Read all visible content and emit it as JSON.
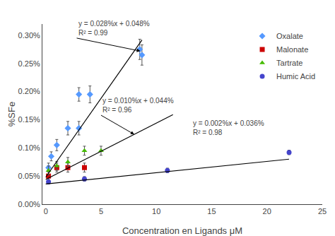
{
  "chart_data": {
    "type": "scatter",
    "xlabel": "Concentration en Ligands μM",
    "ylabel": "%SFe",
    "xlim": [
      -0.3,
      25
    ],
    "ylim": [
      0,
      0.0032
    ],
    "xticks": [
      0,
      5,
      10,
      15,
      20,
      25
    ],
    "yticks": [
      {
        "value": 0.0,
        "label": "0.00%"
      },
      {
        "value": 0.0005,
        "label": "0.05%"
      },
      {
        "value": 0.001,
        "label": "0.10%"
      },
      {
        "value": 0.0015,
        "label": "0.15%"
      },
      {
        "value": 0.002,
        "label": "0.20%"
      },
      {
        "value": 0.0025,
        "label": "0.25%"
      },
      {
        "value": 0.003,
        "label": "0.30%"
      }
    ],
    "grid": false,
    "legend": "upper right",
    "series": [
      {
        "name": "Oxalate",
        "type": "scatter",
        "color": "#5599ff",
        "marker": "diamond",
        "x": [
          0.25,
          0.5,
          1.0,
          2.0,
          3.0,
          3.0,
          4.0,
          8.5,
          8.7
        ],
        "values": [
          0.00065,
          0.00085,
          0.00105,
          0.00135,
          0.00135,
          0.00195,
          0.00195,
          0.00275,
          0.00265
        ],
        "yerr": [
          8e-05,
          8e-05,
          0.0001,
          0.00012,
          0.00012,
          0.00012,
          0.00015,
          0.00018,
          0.00018
        ]
      },
      {
        "name": "Malonate",
        "type": "scatter",
        "color": "#cc0000",
        "marker": "square",
        "x": [
          0.25,
          1.0,
          2.0,
          3.5
        ],
        "values": [
          0.0005,
          0.00065,
          0.00065,
          0.00065
        ],
        "yerr": [
          8e-05,
          8e-05,
          8e-05,
          8e-05
        ]
      },
      {
        "name": "Tartrate",
        "type": "scatter",
        "color": "#44bb00",
        "marker": "triangle-up",
        "x": [
          0.25,
          1.0,
          2.0,
          3.5,
          5.0
        ],
        "values": [
          0.0006,
          0.00068,
          0.00075,
          0.00095,
          0.00095
        ],
        "yerr": [
          8e-05,
          8e-05,
          8e-05,
          8e-05,
          8e-05
        ]
      },
      {
        "name": "Humic Acid",
        "type": "scatter",
        "color": "#4444cc",
        "marker": "circle",
        "x": [
          0.25,
          3.5,
          11.0,
          22.0
        ],
        "values": [
          0.0004,
          0.00045,
          0.0006,
          0.00092
        ],
        "yerr": [
          4e-05,
          4e-05,
          4e-05,
          4e-05
        ]
      },
      {
        "type": "line",
        "color": "#000000",
        "line_style": "solid",
        "x": [
          0,
          8.7
        ],
        "values": [
          0.00048,
          0.002916
        ]
      },
      {
        "type": "line",
        "color": "#000000",
        "line_style": "solid",
        "x": [
          0,
          11.5
        ],
        "values": [
          0.00044,
          0.00159
        ]
      },
      {
        "type": "line",
        "color": "#000000",
        "line_style": "solid",
        "x": [
          0,
          22.0
        ],
        "values": [
          0.00036,
          0.0008
        ]
      }
    ],
    "annotations": [
      {
        "text": "y = 0.028%x + 0.048%\nR² = 0.99",
        "x": 2.8,
        "y": 0.00295,
        "arrow_to": [
          8.55,
          0.00272
        ]
      },
      {
        "text": "y = 0.010%x + 0.044%\nR² = 0.96",
        "x": 5.0,
        "y": 0.00158,
        "arrow_to": [
          8.0,
          0.00124
        ]
      },
      {
        "text": "y = 0.002%x + 0.036%\nR² = 0.98",
        "x": 13.2,
        "y": 0.00135
      }
    ]
  }
}
